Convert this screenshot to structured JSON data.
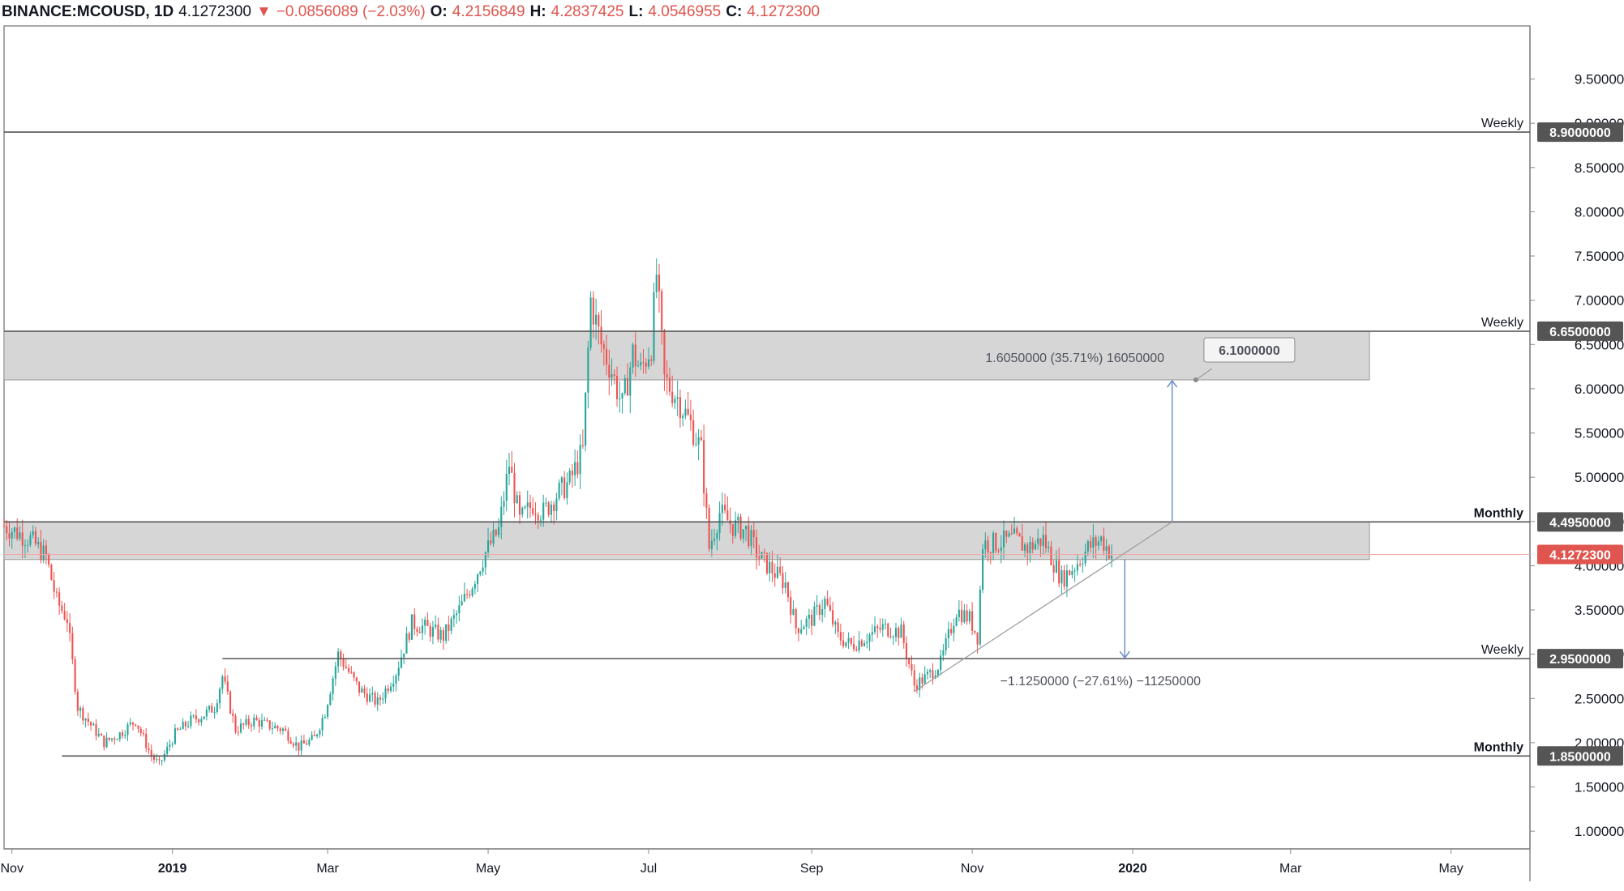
{
  "header": {
    "symbol": "BINANCE:MCOUSD, 1D",
    "last": "4.1272300",
    "arrow": "▼",
    "change": "−0.0856089 (−2.03%)",
    "o_label": "O:",
    "o_value": "4.2156849",
    "h_label": "H:",
    "h_value": "4.2837425",
    "l_label": "L:",
    "l_value": "4.0546955",
    "c_label": "C:",
    "c_value": "4.1272300"
  },
  "colors": {
    "up": "#26a69a",
    "down": "#ef5350",
    "zone": "#d6d6d6",
    "level_line": "#555555",
    "badge": "#555555",
    "price_badge": "#e0554f",
    "measure": "#6f8fc7"
  },
  "chart_data": {
    "type": "candlestick",
    "title": "",
    "y_ticks": [
      "1.0000000",
      "1.5000000",
      "2.0000000",
      "2.5000000",
      "3.0000000",
      "3.5000000",
      "4.0000000",
      "4.5000000",
      "5.0000000",
      "5.5000000",
      "6.0000000",
      "6.5000000",
      "7.0000000",
      "7.5000000",
      "8.0000000",
      "8.5000000",
      "9.0000000",
      "9.5000000"
    ],
    "ylim": [
      0.8,
      10.1
    ],
    "x_range": [
      "2018-10-29",
      "2020-05-31"
    ],
    "x_ticks": [
      {
        "label": "Nov",
        "date": "2018-11-01",
        "bold": false
      },
      {
        "label": "2019",
        "date": "2019-01-01",
        "bold": true
      },
      {
        "label": "Mar",
        "date": "2019-03-01",
        "bold": false
      },
      {
        "label": "May",
        "date": "2019-05-01",
        "bold": false
      },
      {
        "label": "Jul",
        "date": "2019-07-01",
        "bold": false
      },
      {
        "label": "Sep",
        "date": "2019-09-01",
        "bold": false
      },
      {
        "label": "Nov",
        "date": "2019-11-01",
        "bold": false
      },
      {
        "label": "2020",
        "date": "2020-01-01",
        "bold": true
      },
      {
        "label": "Mar",
        "date": "2020-03-01",
        "bold": false
      },
      {
        "label": "May",
        "date": "2020-05-01",
        "bold": false
      }
    ],
    "close_path": [
      [
        "2018-10-29",
        4.45
      ],
      [
        "2018-11-08",
        4.3
      ],
      [
        "2018-11-14",
        4.1
      ],
      [
        "2018-11-18",
        3.6
      ],
      [
        "2018-11-22",
        3.4
      ],
      [
        "2018-11-26",
        2.4
      ],
      [
        "2018-12-01",
        2.2
      ],
      [
        "2018-12-06",
        2.0
      ],
      [
        "2018-12-12",
        2.1
      ],
      [
        "2018-12-18",
        2.25
      ],
      [
        "2018-12-24",
        1.85
      ],
      [
        "2018-12-27",
        1.75
      ],
      [
        "2019-01-02",
        2.1
      ],
      [
        "2019-01-08",
        2.25
      ],
      [
        "2019-01-12",
        2.3
      ],
      [
        "2019-01-17",
        2.4
      ],
      [
        "2019-01-20",
        2.75
      ],
      [
        "2019-01-25",
        2.15
      ],
      [
        "2019-02-01",
        2.25
      ],
      [
        "2019-02-06",
        2.2
      ],
      [
        "2019-02-12",
        2.15
      ],
      [
        "2019-02-18",
        1.95
      ],
      [
        "2019-02-24",
        2.05
      ],
      [
        "2019-02-28",
        2.35
      ],
      [
        "2019-03-05",
        3.0
      ],
      [
        "2019-03-08",
        2.85
      ],
      [
        "2019-03-13",
        2.6
      ],
      [
        "2019-03-20",
        2.45
      ],
      [
        "2019-03-27",
        2.8
      ],
      [
        "2019-04-02",
        3.35
      ],
      [
        "2019-04-07",
        3.3
      ],
      [
        "2019-04-14",
        3.2
      ],
      [
        "2019-04-20",
        3.5
      ],
      [
        "2019-04-25",
        3.8
      ],
      [
        "2019-04-30",
        4.15
      ],
      [
        "2019-05-05",
        4.4
      ],
      [
        "2019-05-09",
        5.15
      ],
      [
        "2019-05-13",
        4.5
      ],
      [
        "2019-05-18",
        4.7
      ],
      [
        "2019-05-22",
        4.6
      ],
      [
        "2019-05-27",
        4.8
      ],
      [
        "2019-06-01",
        4.95
      ],
      [
        "2019-06-06",
        5.3
      ],
      [
        "2019-06-09",
        7.0
      ],
      [
        "2019-06-13",
        6.5
      ],
      [
        "2019-06-17",
        6.2
      ],
      [
        "2019-06-21",
        5.8
      ],
      [
        "2019-06-25",
        6.4
      ],
      [
        "2019-06-28",
        6.2
      ],
      [
        "2019-07-02",
        6.5
      ],
      [
        "2019-07-04",
        7.3
      ],
      [
        "2019-07-07",
        6.1
      ],
      [
        "2019-07-12",
        5.9
      ],
      [
        "2019-07-17",
        5.6
      ],
      [
        "2019-07-21",
        5.3
      ],
      [
        "2019-07-24",
        4.2
      ],
      [
        "2019-07-28",
        4.6
      ],
      [
        "2019-08-02",
        4.45
      ],
      [
        "2019-08-07",
        4.4
      ],
      [
        "2019-08-12",
        4.1
      ],
      [
        "2019-08-17",
        3.95
      ],
      [
        "2019-08-22",
        3.8
      ],
      [
        "2019-08-26",
        3.3
      ],
      [
        "2019-09-01",
        3.4
      ],
      [
        "2019-09-06",
        3.6
      ],
      [
        "2019-09-11",
        3.2
      ],
      [
        "2019-09-16",
        3.1
      ],
      [
        "2019-09-22",
        3.2
      ],
      [
        "2019-09-28",
        3.3
      ],
      [
        "2019-10-05",
        3.25
      ],
      [
        "2019-10-10",
        2.65
      ],
      [
        "2019-10-15",
        2.75
      ],
      [
        "2019-10-20",
        2.9
      ],
      [
        "2019-10-26",
        3.5
      ],
      [
        "2019-10-31",
        3.4
      ],
      [
        "2019-11-03",
        3.2
      ],
      [
        "2019-11-05",
        4.25
      ],
      [
        "2019-11-10",
        4.25
      ],
      [
        "2019-11-17",
        4.3
      ],
      [
        "2019-11-22",
        4.2
      ],
      [
        "2019-11-28",
        4.3
      ],
      [
        "2019-12-01",
        4.1
      ],
      [
        "2019-12-05",
        3.85
      ],
      [
        "2019-12-10",
        4.0
      ],
      [
        "2019-12-15",
        4.2
      ],
      [
        "2019-12-20",
        4.3
      ],
      [
        "2019-12-24",
        4.13
      ]
    ],
    "levels": [
      {
        "label": "Weekly",
        "value": "8.9000000",
        "price": 8.9
      },
      {
        "label": "Weekly",
        "value": "6.6500000",
        "price": 6.65
      },
      {
        "label": "Monthly",
        "value": "4.4950000",
        "price": 4.495
      },
      {
        "label": "Weekly",
        "value": "2.9500000",
        "price": 2.95
      },
      {
        "label": "Monthly",
        "value": "1.8500000",
        "price": 1.85
      }
    ],
    "zones": [
      {
        "from": 6.1,
        "to": 6.65,
        "start": "2018-10-29",
        "end": "2020-03-31"
      },
      {
        "from": 4.07,
        "to": 4.495,
        "start": "2018-10-29",
        "end": "2020-03-31"
      }
    ],
    "current_price": {
      "value": "4.1272300",
      "price": 4.12723
    },
    "support_trendline": [
      [
        "2019-10-10",
        2.58
      ],
      [
        "2020-01-16",
        4.495
      ]
    ],
    "measure_up": {
      "date": "2020-01-16",
      "from": 4.495,
      "to": 6.1,
      "label": "1.6050000 (35.71%) 16050000",
      "callout": "6.1000000",
      "callout_date": "2020-01-25"
    },
    "measure_down": {
      "date": "2019-12-29",
      "from": 4.075,
      "to": 2.95,
      "label": "−1.1250000 (−27.61%) −11250000"
    }
  }
}
